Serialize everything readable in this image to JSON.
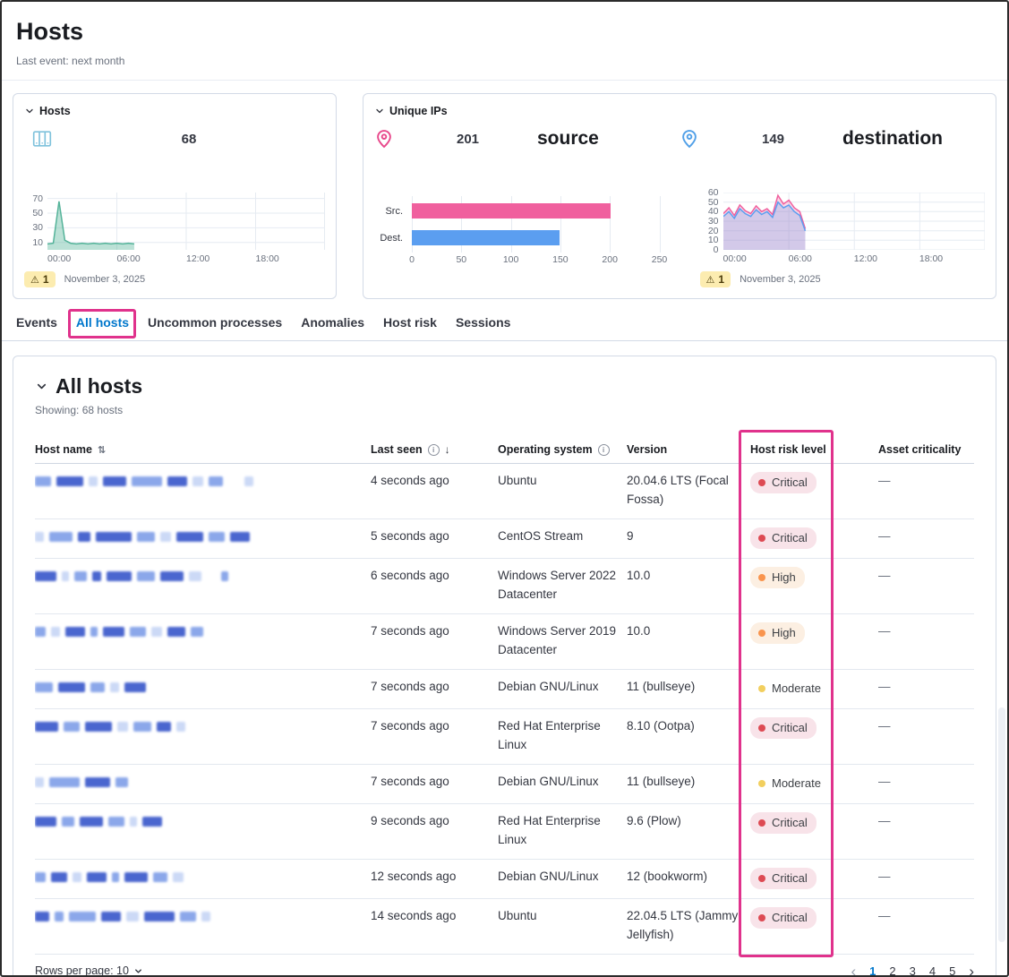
{
  "page": {
    "title": "Hosts",
    "subtitle": "Last event: next month"
  },
  "panels": {
    "hosts": {
      "label": "Hosts",
      "count": "68",
      "warning_count": "1",
      "date_label": "November 3, 2025"
    },
    "unique_ips": {
      "label": "Unique IPs",
      "source": {
        "count": "201",
        "label": "source"
      },
      "destination": {
        "count": "149",
        "label": "destination"
      },
      "warning_count": "1",
      "date_label": "November 3, 2025"
    }
  },
  "tabs": [
    {
      "label": "Events",
      "active": false
    },
    {
      "label": "All hosts",
      "active": true,
      "annotated": true
    },
    {
      "label": "Uncommon processes",
      "active": false
    },
    {
      "label": "Anomalies",
      "active": false
    },
    {
      "label": "Host risk",
      "active": false
    },
    {
      "label": "Sessions",
      "active": false
    }
  ],
  "all_hosts": {
    "title": "All hosts",
    "showing": "Showing: 68 hosts",
    "columns": [
      {
        "label": "Host name",
        "sort": "both"
      },
      {
        "label": "Last seen",
        "info": true,
        "sort": "down"
      },
      {
        "label": "Operating system",
        "info": true
      },
      {
        "label": "Version"
      },
      {
        "label": "Host risk level"
      },
      {
        "label": "Asset criticality"
      }
    ],
    "rows": [
      {
        "last_seen": "4 seconds ago",
        "os": "Ubuntu",
        "version": "20.04.6 LTS (Focal Fossa)",
        "risk": "Critical",
        "criticality": "—",
        "redaction": [
          [
            18,
            1
          ],
          [
            30,
            2
          ],
          [
            10,
            0
          ],
          [
            26,
            2
          ],
          [
            34,
            1
          ],
          [
            22,
            2
          ],
          [
            12,
            0
          ],
          [
            16,
            1
          ],
          [
            10,
            0,
            18
          ]
        ]
      },
      {
        "last_seen": "5 seconds ago",
        "os": "CentOS Stream",
        "version": "9",
        "risk": "Critical",
        "criticality": "—",
        "redaction": [
          [
            10,
            0
          ],
          [
            26,
            1
          ],
          [
            14,
            2
          ],
          [
            40,
            2
          ],
          [
            20,
            1
          ],
          [
            12,
            0
          ],
          [
            30,
            2
          ],
          [
            18,
            1
          ],
          [
            22,
            2
          ]
        ]
      },
      {
        "last_seen": "6 seconds ago",
        "os": "Windows Server 2022 Datacenter",
        "version": "10.0",
        "risk": "High",
        "criticality": "—",
        "redaction": [
          [
            24,
            2
          ],
          [
            8,
            0
          ],
          [
            14,
            1
          ],
          [
            10,
            2
          ],
          [
            28,
            2
          ],
          [
            20,
            1
          ],
          [
            26,
            2
          ],
          [
            14,
            0
          ],
          [
            8,
            1,
            16
          ]
        ]
      },
      {
        "last_seen": "7 seconds ago",
        "os": "Windows Server 2019 Datacenter",
        "version": "10.0",
        "risk": "High",
        "criticality": "—",
        "redaction": [
          [
            12,
            1
          ],
          [
            10,
            0
          ],
          [
            22,
            2
          ],
          [
            8,
            1
          ],
          [
            24,
            2
          ],
          [
            18,
            1
          ],
          [
            12,
            0
          ],
          [
            20,
            2
          ],
          [
            14,
            1
          ]
        ]
      },
      {
        "last_seen": "7 seconds ago",
        "os": "Debian GNU/Linux",
        "version": "11 (bullseye)",
        "risk": "Moderate",
        "criticality": "—",
        "redaction": [
          [
            20,
            1
          ],
          [
            30,
            2
          ],
          [
            16,
            1
          ],
          [
            10,
            0
          ],
          [
            24,
            2
          ]
        ]
      },
      {
        "last_seen": "7 seconds ago",
        "os": "Red Hat Enterprise Linux",
        "version": "8.10 (Ootpa)",
        "risk": "Critical",
        "criticality": "—",
        "redaction": [
          [
            26,
            2
          ],
          [
            18,
            1
          ],
          [
            30,
            2
          ],
          [
            12,
            0
          ],
          [
            20,
            1
          ],
          [
            16,
            2
          ],
          [
            10,
            0
          ]
        ]
      },
      {
        "last_seen": "7 seconds ago",
        "os": "Debian GNU/Linux",
        "version": "11 (bullseye)",
        "risk": "Moderate",
        "criticality": "—",
        "redaction": [
          [
            10,
            0
          ],
          [
            34,
            1
          ],
          [
            28,
            2
          ],
          [
            14,
            1
          ]
        ]
      },
      {
        "last_seen": "9 seconds ago",
        "os": "Red Hat Enterprise Linux",
        "version": "9.6 (Plow)",
        "risk": "Critical",
        "criticality": "—",
        "redaction": [
          [
            24,
            2
          ],
          [
            14,
            1
          ],
          [
            26,
            2
          ],
          [
            18,
            1
          ],
          [
            8,
            0
          ],
          [
            22,
            2
          ]
        ]
      },
      {
        "last_seen": "12 seconds ago",
        "os": "Debian GNU/Linux",
        "version": "12 (bookworm)",
        "risk": "Critical",
        "criticality": "—",
        "redaction": [
          [
            12,
            1
          ],
          [
            18,
            2
          ],
          [
            10,
            0
          ],
          [
            22,
            2
          ],
          [
            8,
            1
          ],
          [
            26,
            2
          ],
          [
            16,
            1
          ],
          [
            12,
            0
          ]
        ]
      },
      {
        "last_seen": "14 seconds ago",
        "os": "Ubuntu",
        "version": "22.04.5 LTS (Jammy Jellyfish)",
        "risk": "Critical",
        "criticality": "—",
        "redaction": [
          [
            16,
            2
          ],
          [
            10,
            1
          ],
          [
            30,
            1
          ],
          [
            22,
            2
          ],
          [
            14,
            0
          ],
          [
            34,
            2
          ],
          [
            18,
            1
          ],
          [
            10,
            0
          ]
        ]
      }
    ],
    "footer": {
      "rows_per_page": "Rows per page: 10",
      "pages": [
        "1",
        "2",
        "3",
        "4",
        "5"
      ],
      "active_page": "1"
    }
  },
  "chart_data": [
    {
      "id": "hosts-area",
      "type": "area",
      "title": "Hosts over time",
      "x_unit": "hour",
      "x_range": [
        0,
        24
      ],
      "xticks": [
        "00:00",
        "06:00",
        "12:00",
        "18:00"
      ],
      "xtick_hours": [
        0,
        6,
        12,
        18
      ],
      "yticks": [
        70,
        50,
        30,
        10
      ],
      "ylim": [
        0,
        78
      ],
      "fill_opacity": 0.4,
      "series": [
        {
          "name": "hosts",
          "color": "#54b399",
          "points": [
            [
              0,
              8
            ],
            [
              0.5,
              9
            ],
            [
              1,
              66
            ],
            [
              1.5,
              13
            ],
            [
              2,
              9
            ],
            [
              2.5,
              8
            ],
            [
              3,
              9
            ],
            [
              3.5,
              8
            ],
            [
              4,
              9
            ],
            [
              4.5,
              8
            ],
            [
              5,
              9
            ],
            [
              5.5,
              8
            ],
            [
              6,
              9
            ],
            [
              6.5,
              8
            ],
            [
              7,
              9
            ],
            [
              7.5,
              8
            ]
          ]
        }
      ]
    },
    {
      "id": "unique-ips-bar",
      "type": "bar",
      "orientation": "horizontal",
      "categories": [
        "Src.",
        "Dest."
      ],
      "values": [
        201,
        149
      ],
      "bar_colors": [
        "#f0609e",
        "#5b9ef0"
      ],
      "xticks": [
        0,
        50,
        100,
        150,
        200,
        250
      ],
      "xlim": [
        0,
        250
      ]
    },
    {
      "id": "unique-ips-line",
      "type": "line",
      "x_range": [
        0,
        24
      ],
      "xticks": [
        "00:00",
        "06:00",
        "12:00",
        "18:00"
      ],
      "xtick_hours": [
        0,
        6,
        12,
        18
      ],
      "yticks": [
        60,
        50,
        40,
        30,
        20,
        10,
        0
      ],
      "ylim": [
        0,
        60
      ],
      "fill_opacity": 0.25,
      "series": [
        {
          "name": "source",
          "color": "#f0609e",
          "points": [
            [
              0,
              38
            ],
            [
              0.5,
              44
            ],
            [
              1,
              36
            ],
            [
              1.5,
              47
            ],
            [
              2,
              41
            ],
            [
              2.5,
              38
            ],
            [
              3,
              46
            ],
            [
              3.5,
              40
            ],
            [
              4,
              43
            ],
            [
              4.5,
              37
            ],
            [
              5,
              57
            ],
            [
              5.5,
              48
            ],
            [
              6,
              52
            ],
            [
              6.5,
              44
            ],
            [
              7,
              40
            ],
            [
              7.5,
              22
            ]
          ]
        },
        {
          "name": "destination",
          "color": "#5b9ef0",
          "points": [
            [
              0,
              35
            ],
            [
              0.5,
              40
            ],
            [
              1,
              33
            ],
            [
              1.5,
              43
            ],
            [
              2,
              38
            ],
            [
              2.5,
              35
            ],
            [
              3,
              42
            ],
            [
              3.5,
              37
            ],
            [
              4,
              40
            ],
            [
              4.5,
              34
            ],
            [
              5,
              50
            ],
            [
              5.5,
              44
            ],
            [
              6,
              47
            ],
            [
              6.5,
              40
            ],
            [
              7,
              36
            ],
            [
              7.5,
              20
            ]
          ]
        }
      ]
    }
  ],
  "colors": {
    "annotation": "#e0328c",
    "link": "#0077cc",
    "source_pink": "#f0609e",
    "dest_blue": "#5b9ef0",
    "hosts_teal": "#54b399",
    "warning_bg": "#fcecb0",
    "redaction_shades": [
      "#ccd9f6",
      "#8ba7ea",
      "#4a66cf"
    ],
    "risk_styles": {
      "Critical": {
        "dot": "#dd4a53",
        "bg": "#f8e3e9",
        "text": "#3c3f44"
      },
      "High": {
        "dot": "#f9944d",
        "bg": "#fcefe2",
        "text": "#3c3f44"
      },
      "Moderate": {
        "dot": "#f2cf5e",
        "bg": "transparent",
        "text": "#3c3f44"
      }
    }
  }
}
